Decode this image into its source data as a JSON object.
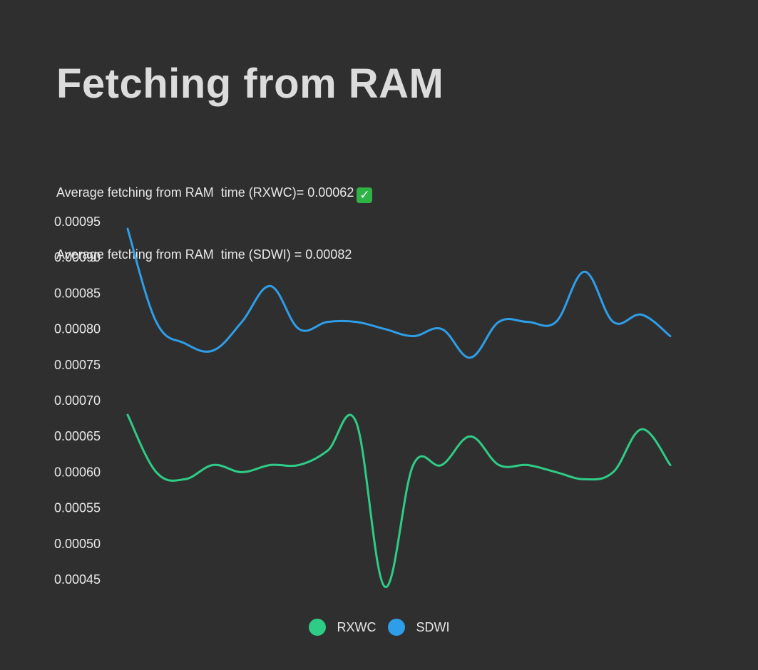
{
  "title": "Fetching from RAM",
  "stats": {
    "line1": "Average fetching from RAM  time (RXWC)= 0.00062",
    "line1_icon": "check-mark-icon",
    "line2": "Average fetching from RAM  time (SDWI) = 0.00082"
  },
  "colors": {
    "background": "#2f2f2f",
    "RXWC": "#2ecc87",
    "SDWI": "#2e9ee8",
    "check": "#2fb344"
  },
  "chart_data": {
    "type": "line",
    "title": "Fetching from RAM",
    "xlabel": "",
    "ylabel": "",
    "ylim": [
      0.00045,
      0.00095
    ],
    "yticks": [
      "0.00095",
      "0.00090",
      "0.00085",
      "0.00080",
      "0.00075",
      "0.00070",
      "0.00065",
      "0.00060",
      "0.00055",
      "0.00050",
      "0.00045"
    ],
    "grid": false,
    "legend_position": "bottom-center",
    "curve": "smooth",
    "x": [
      1,
      2,
      3,
      4,
      5,
      6,
      7,
      8,
      9,
      10,
      11,
      12,
      13,
      14,
      15,
      16,
      17,
      18,
      19,
      20,
      21
    ],
    "series": [
      {
        "name": "RXWC",
        "values": [
          0.00068,
          0.0006,
          0.00059,
          0.00061,
          0.0006,
          0.00061,
          0.00061,
          0.00063,
          0.00067,
          0.00044,
          0.00061,
          0.00061,
          0.00065,
          0.00061,
          0.00061,
          0.0006,
          0.00059,
          0.0006,
          0.00066,
          0.00061,
          null
        ]
      },
      {
        "name": "SDWI",
        "values": [
          0.00094,
          0.00081,
          0.00078,
          0.00077,
          0.00081,
          0.00086,
          0.0008,
          0.00081,
          0.00081,
          0.0008,
          0.00079,
          0.0008,
          0.00076,
          0.00081,
          0.00081,
          0.00081,
          0.00088,
          0.00081,
          0.00082,
          0.00079,
          null
        ]
      }
    ]
  },
  "legend": {
    "items": [
      "RXWC",
      "SDWI"
    ]
  }
}
